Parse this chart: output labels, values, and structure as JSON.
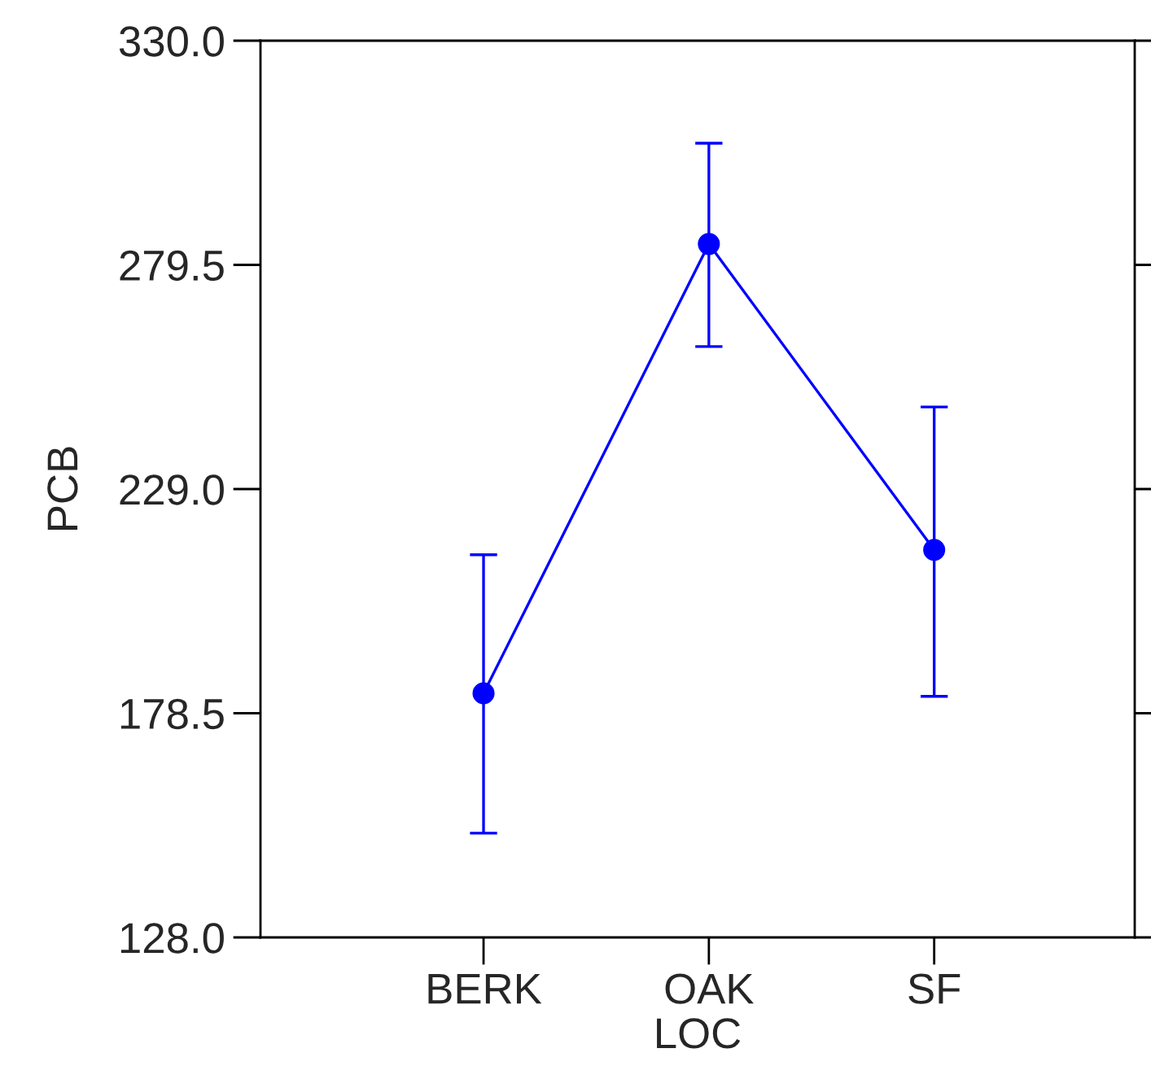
{
  "chart_data": {
    "type": "line",
    "xlabel": "LOC",
    "ylabel": "PCB",
    "categories": [
      "BERK",
      "OAK",
      "SF"
    ],
    "series": [
      {
        "color": "#0000ff",
        "values": [
          183.0,
          284.2,
          215.3
        ],
        "errors": [
          [
            151.5,
            214.2
          ],
          [
            261.1,
            306.9
          ],
          [
            182.3,
            247.5
          ]
        ]
      }
    ],
    "ylim": [
      128.0,
      330.0
    ],
    "yticks": [
      {
        "value": 128.0,
        "label": "128.0"
      },
      {
        "value": 178.5,
        "label": "178.5"
      },
      {
        "value": 229.0,
        "label": "229.0"
      },
      {
        "value": 279.5,
        "label": "279.5"
      },
      {
        "value": 330.0,
        "label": "330.0"
      }
    ],
    "marker": "circle",
    "line_style": "solid",
    "grid": false,
    "legend": false
  }
}
